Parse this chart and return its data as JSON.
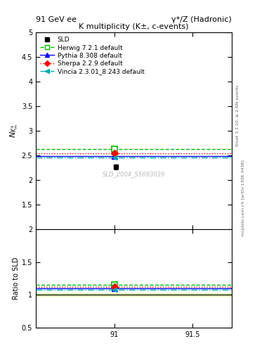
{
  "title_top_left": "91 GeV ee",
  "title_top_right": "γ*/Z (Hadronic)",
  "plot_title": "K multiplicity (K±, c-events)",
  "ylabel_main": "$N_{K^{\\pm}_m}$",
  "ylabel_ratio": "Ratio to SLD",
  "watermark": "SLD_2004_S5693039",
  "right_label_top": "Rivet 3.1.10, ≥ 2.6M events",
  "right_label_bot": "mcplots.cern.ch [arXiv:1306.3436]",
  "xlim": [
    90.5,
    91.75
  ],
  "xticks": [
    91.0,
    91.5
  ],
  "ylim_main": [
    1.0,
    5.0
  ],
  "yticks_main": [
    1.5,
    2.0,
    2.5,
    3.0,
    3.5,
    4.0,
    4.5,
    5.0
  ],
  "ylim_ratio": [
    0.5,
    2.0
  ],
  "yticks_ratio": [
    0.5,
    1.0,
    1.5,
    2.0
  ],
  "data_x": 91.0,
  "sld_value": 2.27,
  "sld_error": 0.05,
  "sld_color": "#000000",
  "sld_label": "SLD",
  "herwig_value": 2.63,
  "herwig_ratio": 1.158,
  "herwig_color": "#00bb00",
  "herwig_label": "Herwig 7.2.1 default",
  "herwig_linestyle": "--",
  "pythia_value": 2.49,
  "pythia_ratio": 1.097,
  "pythia_color": "#0000ff",
  "pythia_label": "Pythia 8.308 default",
  "pythia_linestyle": "-",
  "sherpa_value": 2.54,
  "sherpa_ratio": 1.119,
  "sherpa_color": "#ff0000",
  "sherpa_label": "Sherpa 2.2.9 default",
  "sherpa_linestyle": ":",
  "vincia_value": 2.46,
  "vincia_ratio": 1.083,
  "vincia_color": "#00aaaa",
  "vincia_label": "Vincia 2.3.01_8.243 default",
  "vincia_linestyle": "-.",
  "band_color": "#ccee88",
  "band_alpha": 0.6,
  "band_ratio_low": 0.978,
  "band_ratio_high": 1.022
}
